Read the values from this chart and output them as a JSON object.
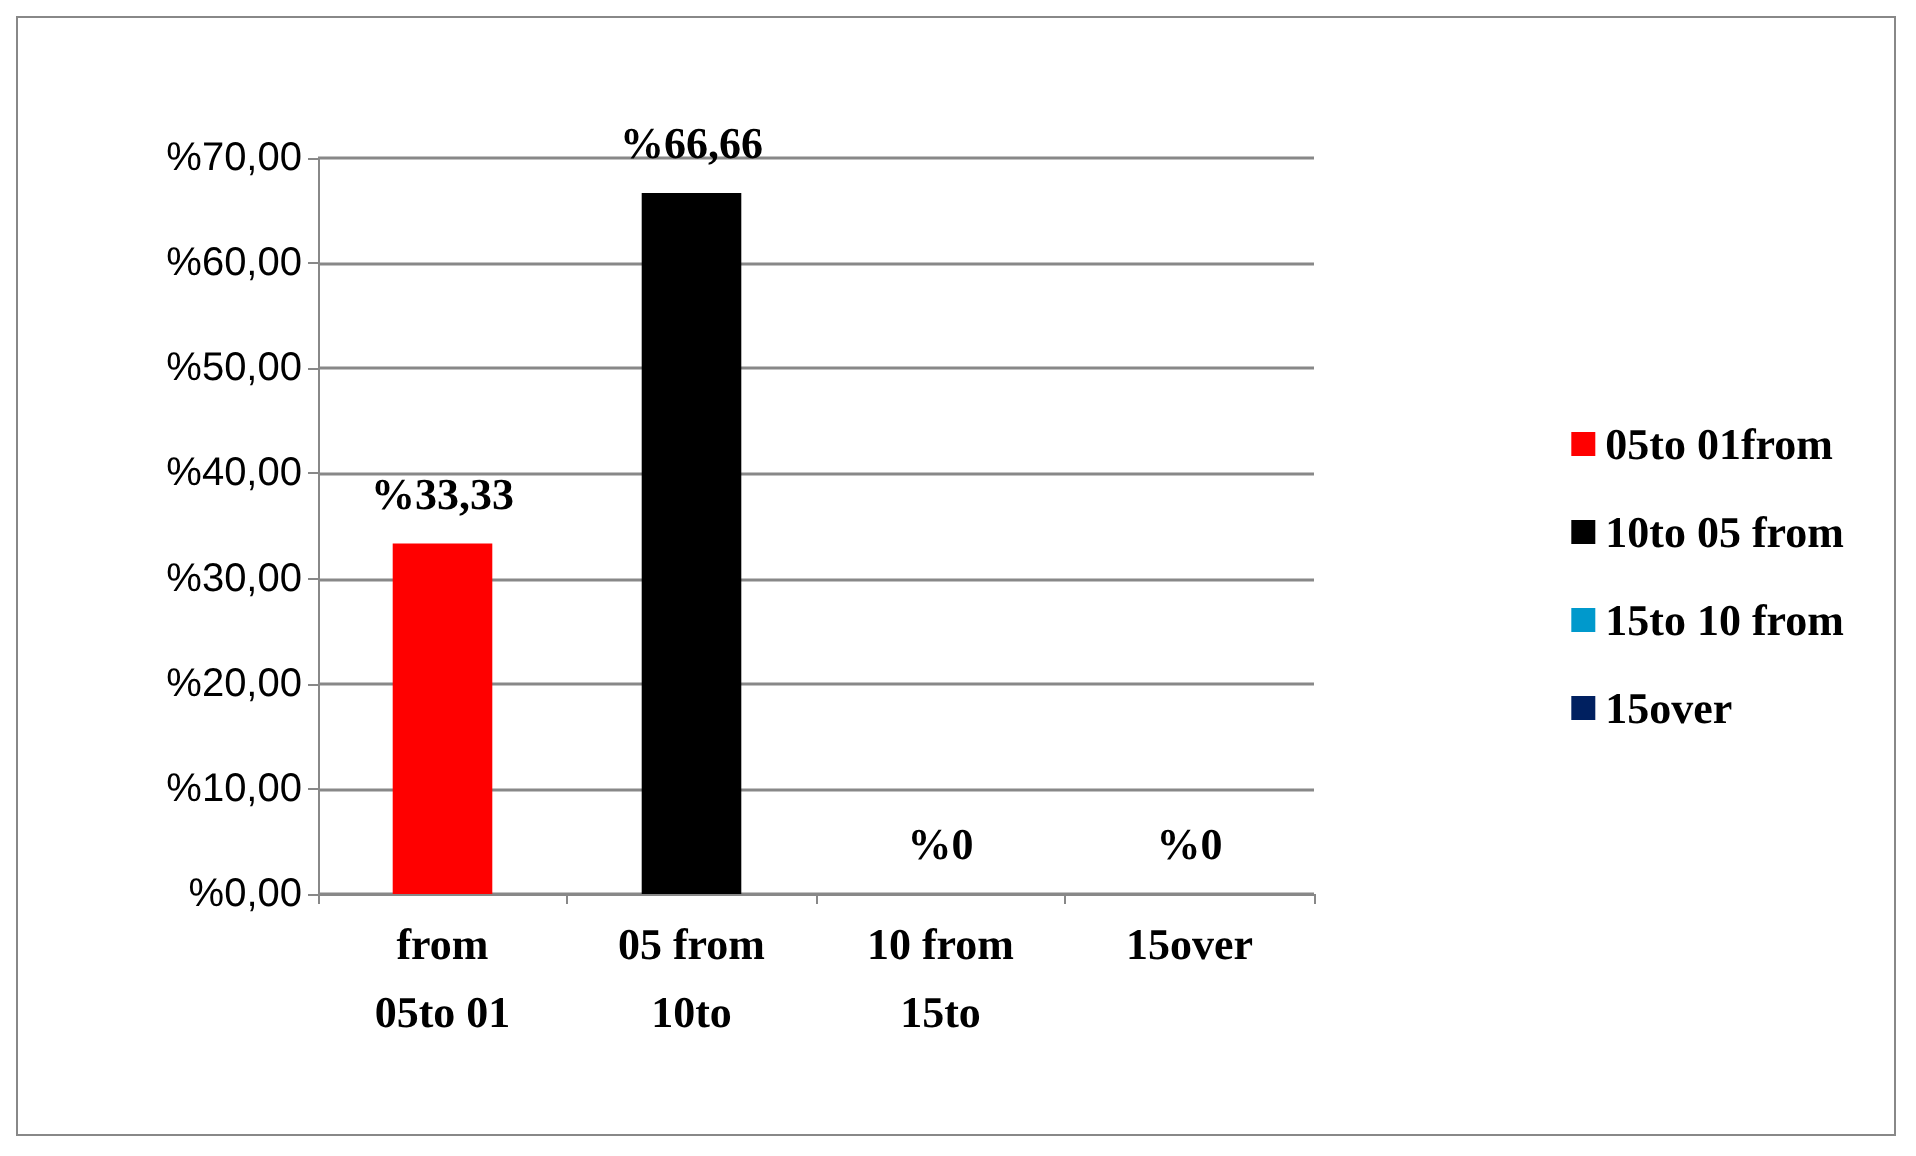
{
  "chart_data": {
    "type": "bar",
    "categories": [
      "from\n05to 01",
      "05 from\n10to",
      "10 from\n15to",
      "15over"
    ],
    "series": [
      {
        "name": "05to 01from",
        "color": "#ff0000",
        "values": [
          33.33,
          null,
          null,
          null
        ],
        "value_labels": [
          "%33,33",
          null,
          null,
          null
        ]
      },
      {
        "name": "10to 05 from",
        "color": "#000000",
        "values": [
          null,
          66.66,
          null,
          null
        ],
        "value_labels": [
          null,
          "%66,66",
          null,
          null
        ]
      },
      {
        "name": "15to 10 from",
        "color": "#0099cc",
        "values": [
          null,
          null,
          0,
          null
        ],
        "value_labels": [
          null,
          null,
          "%0",
          null
        ]
      },
      {
        "name": "15over",
        "color": "#002060",
        "values": [
          null,
          null,
          null,
          0
        ],
        "value_labels": [
          null,
          null,
          null,
          "%0"
        ]
      }
    ],
    "stacked": true,
    "ylim": [
      0,
      70
    ],
    "yticks": [
      {
        "value": 0,
        "label": "%0,00"
      },
      {
        "value": 10,
        "label": "%10,00"
      },
      {
        "value": 20,
        "label": "%20,00"
      },
      {
        "value": 30,
        "label": "%30,00"
      },
      {
        "value": 40,
        "label": "%40,00"
      },
      {
        "value": 50,
        "label": "%50,00"
      },
      {
        "value": 60,
        "label": "%60,00"
      },
      {
        "value": 70,
        "label": "%70,00"
      }
    ],
    "grid": "y",
    "legend": "right"
  }
}
